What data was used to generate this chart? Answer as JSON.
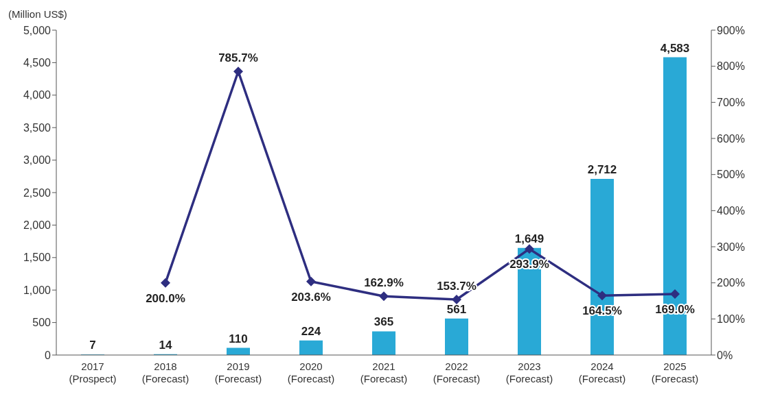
{
  "chart_data": {
    "type": "bar",
    "ylabel": "(Million US$)",
    "categories": [
      "2017\n(Prospect)",
      "2018\n(Forecast)",
      "2019\n(Forecast)",
      "2020\n(Forecast)",
      "2021\n(Forecast)",
      "2022\n(Forecast)",
      "2023\n(Forecast)",
      "2024\n(Forecast)",
      "2025\n(Forecast)"
    ],
    "series": [
      {
        "color": "#29a9d6",
        "values": [
          7,
          14,
          110,
          224,
          365,
          561,
          1649,
          2712,
          4583
        ],
        "value_labels": [
          "7",
          "14",
          "110",
          "224",
          "365",
          "561",
          "1,649",
          "2,712",
          "4,583"
        ]
      },
      {
        "type": "line",
        "axis": "y2",
        "color": "#2e2e80",
        "values": [
          null,
          200.0,
          785.7,
          203.6,
          162.9,
          153.7,
          293.9,
          164.5,
          169.0
        ],
        "value_labels": [
          null,
          "200.0%",
          "785.7%",
          "203.6%",
          "162.9%",
          "153.7%",
          "293.9%",
          "164.5%",
          "169.0%"
        ]
      }
    ],
    "ylim": [
      0,
      5000
    ],
    "yticks": [
      0,
      500,
      {
        "value": 1000,
        "label": "1,000"
      },
      {
        "value": 1500,
        "label": "1,500"
      },
      {
        "value": 2000,
        "label": "2,000"
      },
      {
        "value": 2500,
        "label": "2,500"
      },
      {
        "value": 3000,
        "label": "3,000"
      },
      {
        "value": 3500,
        "label": "3,500"
      },
      {
        "value": 4000,
        "label": "4,000"
      },
      {
        "value": 4500,
        "label": "4,500"
      },
      {
        "value": 5000,
        "label": "5,000"
      }
    ],
    "y2lim": [
      0,
      900
    ],
    "y2ticks": [
      {
        "value": 0,
        "label": "0%"
      },
      {
        "value": 100,
        "label": "100%"
      },
      {
        "value": 200,
        "label": "200%"
      },
      {
        "value": 300,
        "label": "300%"
      },
      {
        "value": 400,
        "label": "400%"
      },
      {
        "value": 500,
        "label": "500%"
      },
      {
        "value": 600,
        "label": "600%"
      },
      {
        "value": 700,
        "label": "700%"
      },
      {
        "value": 800,
        "label": "800%"
      },
      {
        "value": 900,
        "label": "900%"
      }
    ],
    "grid": false,
    "legend": false,
    "marker": "diamond",
    "line_style": "solid"
  }
}
